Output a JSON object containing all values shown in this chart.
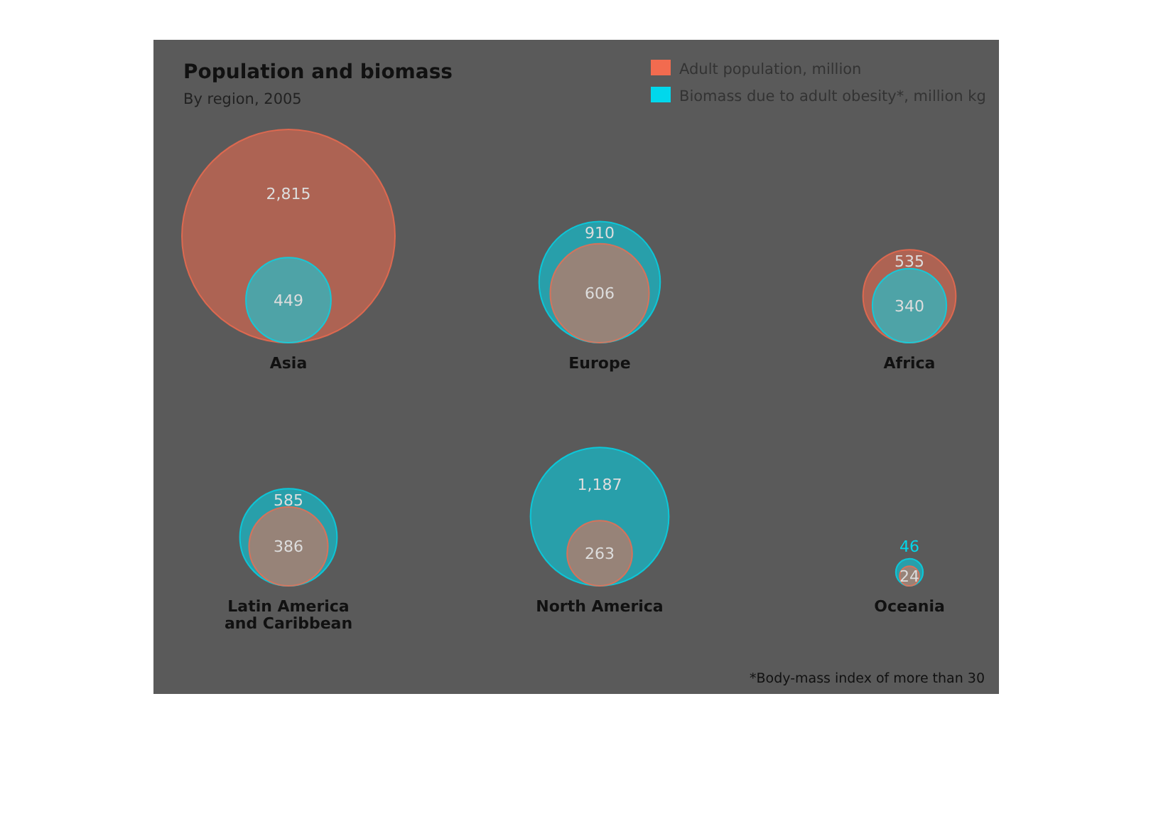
{
  "chart_data": {
    "type": "other",
    "title": "Population and biomass",
    "subtitle": "By region, 2005",
    "categories": [
      "Asia",
      "Europe",
      "Africa",
      "Latin America and Caribbean",
      "North America",
      "Oceania"
    ],
    "series": [
      {
        "name": "Adult population, million",
        "color": "#f26b4f",
        "values": [
          2815,
          606,
          535,
          386,
          263,
          24
        ],
        "value_labels": [
          "2,815",
          "606",
          "535",
          "386",
          "263",
          "24"
        ]
      },
      {
        "name": "Biomass due to adult obesity*, million kg",
        "color": "#00d8ec",
        "values": [
          449,
          910,
          340,
          585,
          1187,
          46
        ],
        "value_labels": [
          "449",
          "910",
          "340",
          "585",
          "1,187",
          "46"
        ]
      }
    ],
    "legend": "top right",
    "annotations": [
      "*Body-mass index of more than 30"
    ]
  }
}
